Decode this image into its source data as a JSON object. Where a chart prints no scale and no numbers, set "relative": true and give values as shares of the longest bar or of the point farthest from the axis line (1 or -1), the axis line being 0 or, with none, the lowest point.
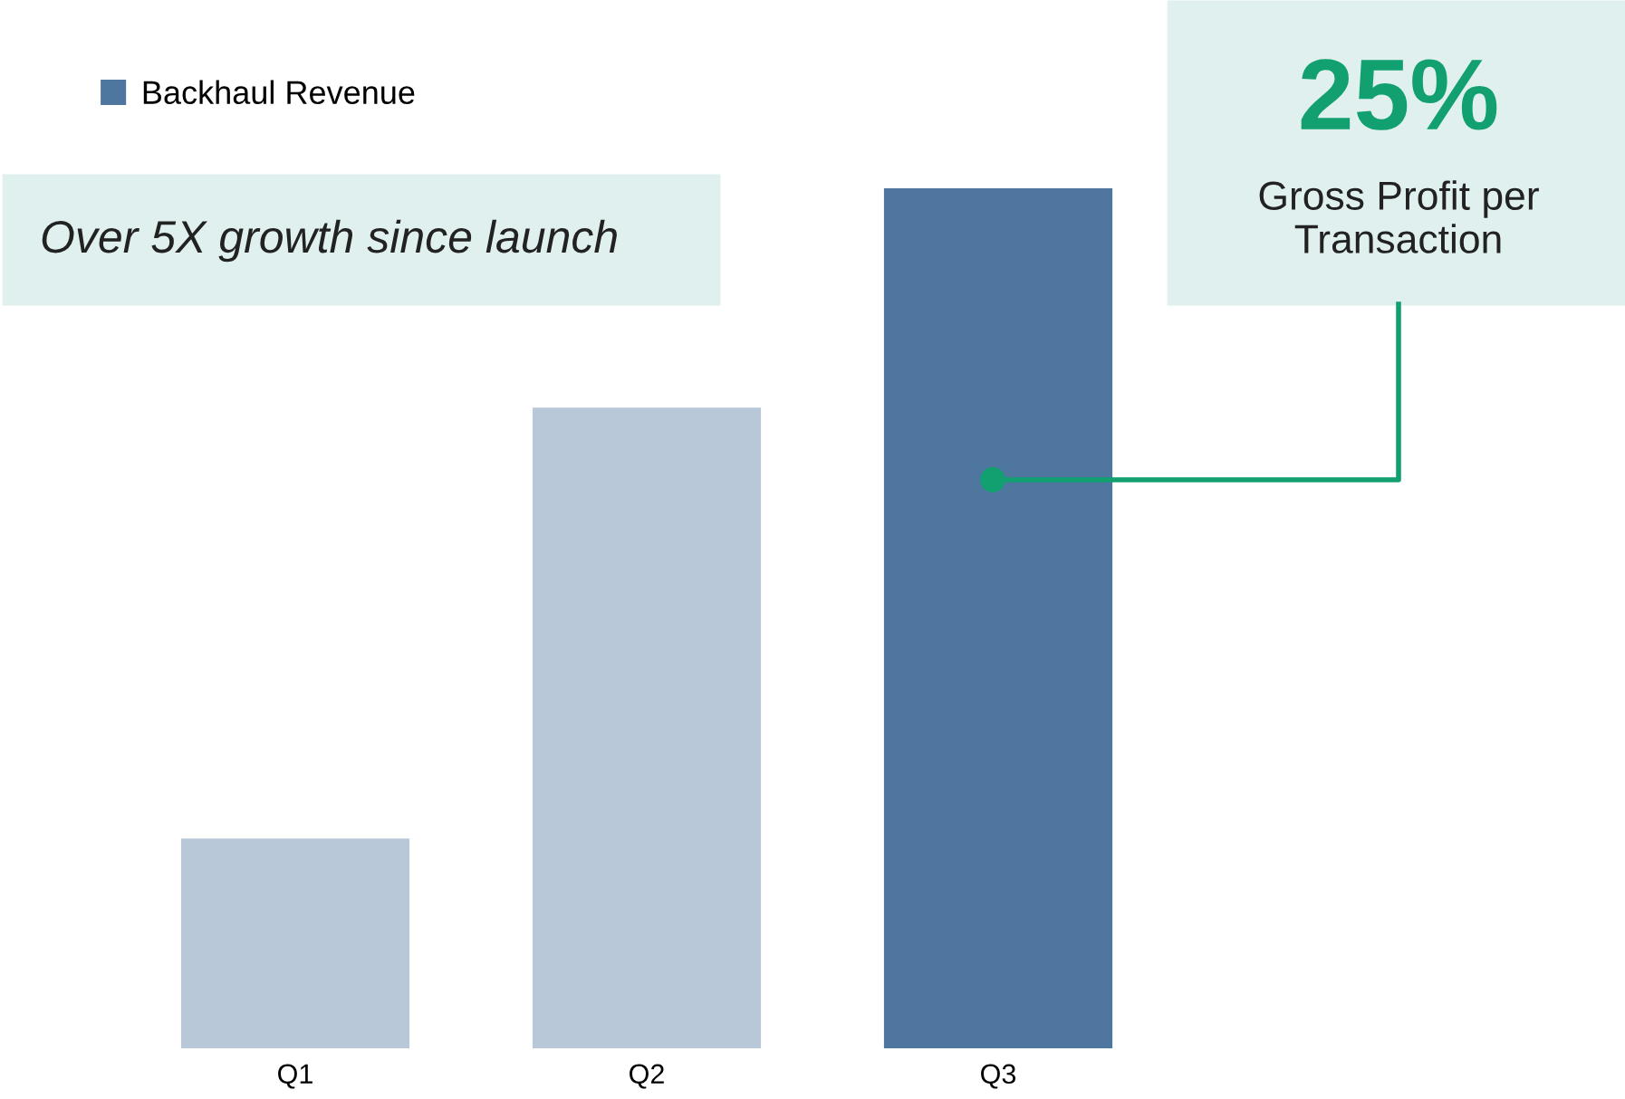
{
  "chart_data": {
    "type": "bar",
    "relative": true,
    "categories": [
      "Q1",
      "Q2",
      "Q3"
    ],
    "series": [
      {
        "name": "Backhaul Revenue",
        "color": "#4e769e",
        "colors": [
          "#b8c8d8",
          "#b8c8d8",
          "#4e769e"
        ],
        "values": [
          0.244,
          0.745,
          1
        ]
      }
    ],
    "annotations": [
      "Over 5X growth since launch",
      "25%",
      "Gross Profit per Transaction"
    ],
    "legend": "top left",
    "grid": false
  }
}
